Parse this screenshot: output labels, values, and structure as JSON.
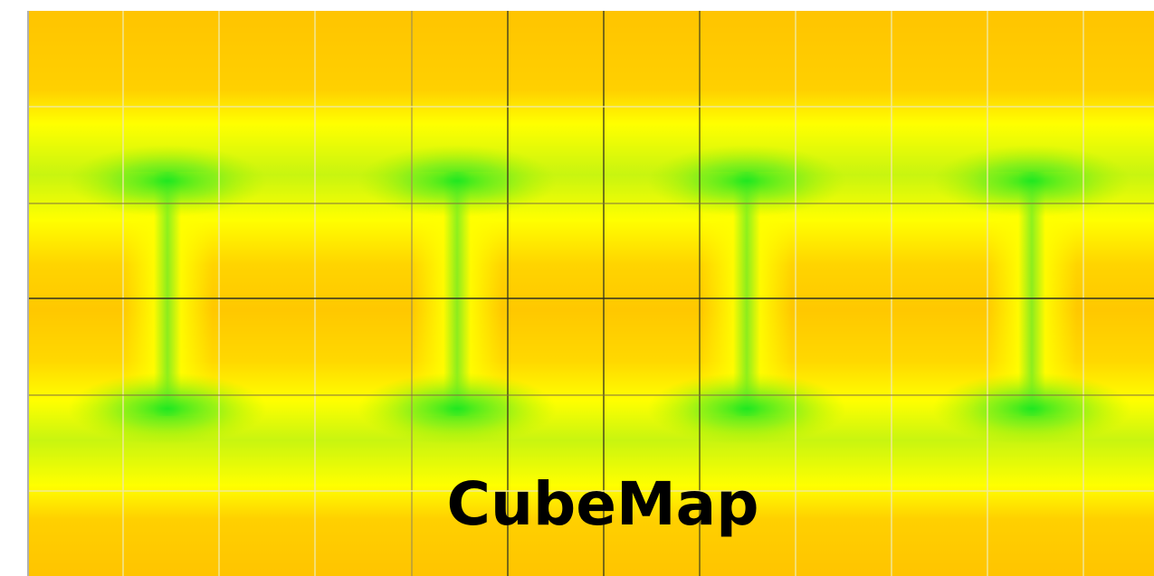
{
  "title": "CubeMap"
}
